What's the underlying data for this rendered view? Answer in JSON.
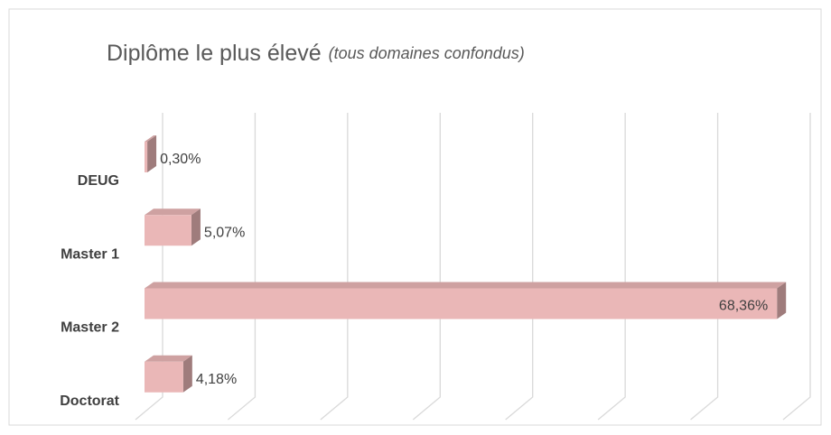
{
  "chart_data": {
    "type": "bar3d_horizontal",
    "title": "Diplôme le plus élevé",
    "subtitle": "(tous domaines confondus)",
    "categories": [
      "DEUG",
      "Master 1",
      "Master 2",
      "Doctorat"
    ],
    "values": [
      0.3,
      5.07,
      68.36,
      4.18
    ],
    "value_labels": [
      "0,30%",
      "5,07%",
      "68,36%",
      "4,18%"
    ],
    "color": "#eab7b7",
    "xlim": [
      0,
      70
    ],
    "xticks": [
      0,
      10,
      20,
      30,
      40,
      50,
      60,
      70
    ],
    "grid": true
  }
}
